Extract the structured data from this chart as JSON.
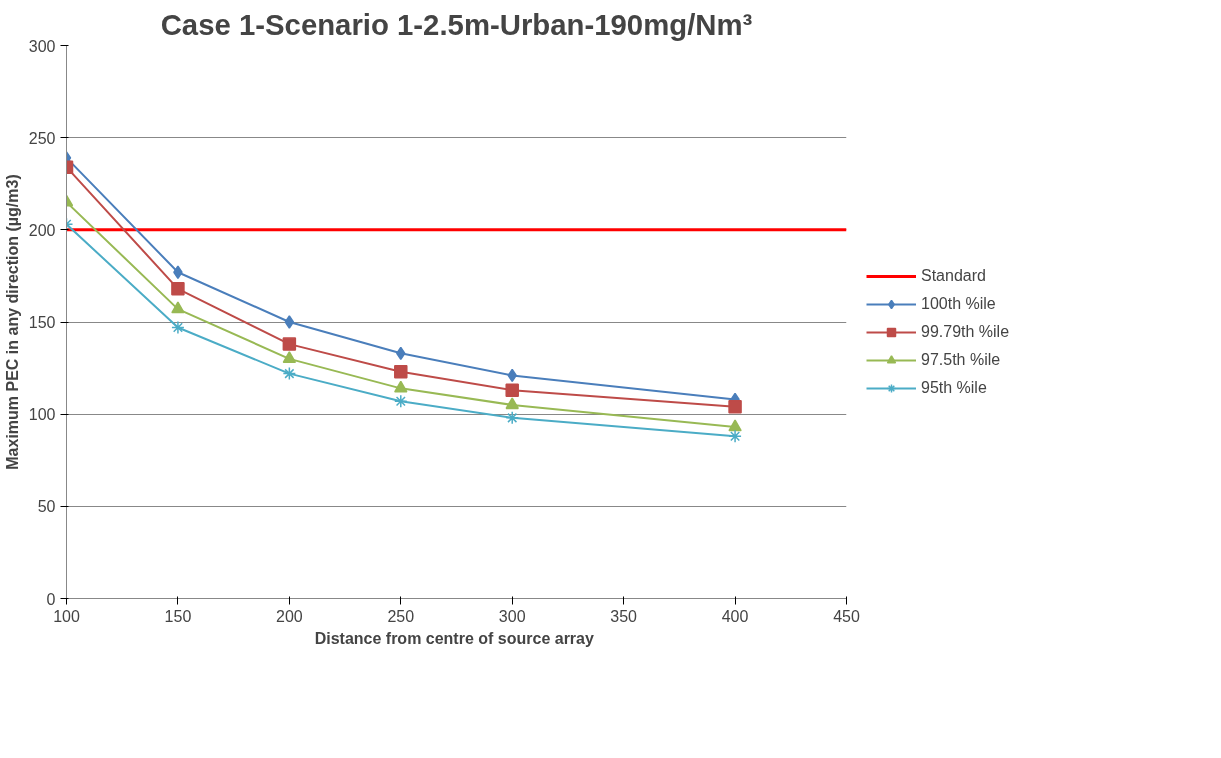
{
  "chart_data": {
    "type": "line",
    "title": "Case 1-Scenario 1-2.5m-Urban-190mg/Nm³",
    "xlabel": "Distance from centre of  source array",
    "ylabel": "Maximum PEC in any direction (µg/m3)",
    "x": [
      100,
      150,
      200,
      250,
      300,
      400
    ],
    "series": [
      {
        "name": "100th %ile",
        "color": "#4a7ebb",
        "marker": "diamond",
        "values": [
          239,
          177,
          150,
          133,
          121,
          108
        ]
      },
      {
        "name": "99.79th %ile",
        "color": "#be4b48",
        "marker": "square",
        "values": [
          234,
          168,
          138,
          123,
          113,
          104
        ]
      },
      {
        "name": "97.5th %ile",
        "color": "#98b954",
        "marker": "triangle",
        "values": [
          215,
          157,
          130,
          114,
          105,
          93
        ]
      },
      {
        "name": "95th %ile",
        "color": "#4bacc6",
        "marker": "cross",
        "values": [
          203,
          147,
          122,
          107,
          98,
          88
        ]
      }
    ],
    "ref_lines": [
      {
        "axis": "y",
        "value": 200,
        "label": "Standard",
        "color": "#ff0000"
      }
    ],
    "xlim": [
      100,
      450
    ],
    "xticks": [
      100,
      150,
      200,
      250,
      300,
      350,
      400,
      450
    ],
    "ylim": [
      0,
      300
    ],
    "yticks": [
      0,
      50,
      100,
      150,
      200,
      250,
      300
    ],
    "grid": "y",
    "legend": "right"
  }
}
